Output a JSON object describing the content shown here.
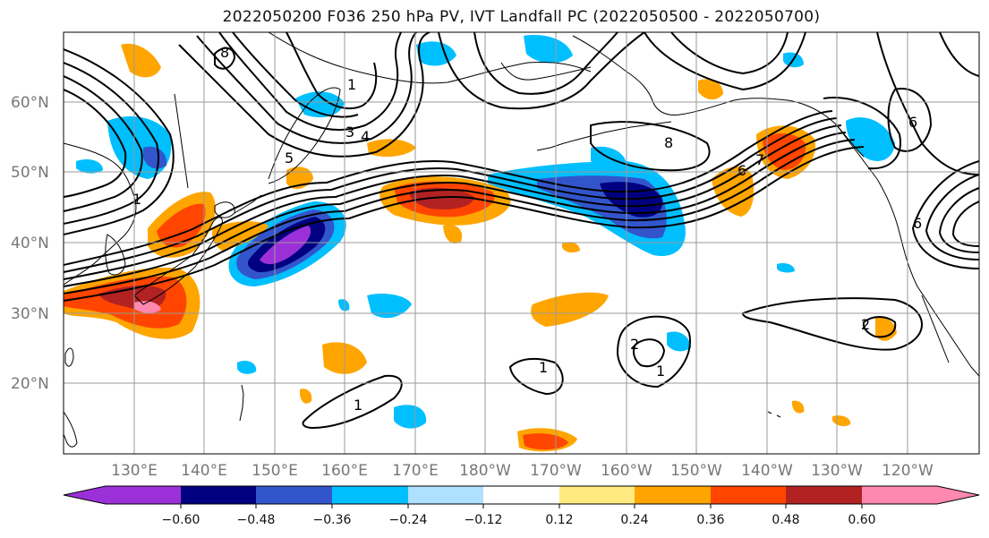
{
  "title": "2022050200 F036 250 hPa PV, IVT Landfall PC (2022050500 - 2022050700)",
  "lat_labels": [
    "60°N",
    "50°N",
    "40°N",
    "30°N",
    "20°N"
  ],
  "lon_labels": [
    "130°E",
    "140°E",
    "150°E",
    "160°E",
    "170°E",
    "180°W",
    "170°W",
    "160°W",
    "150°W",
    "140°W",
    "130°W",
    "120°W"
  ],
  "colorbar": {
    "ticks": [
      "−0.60",
      "−0.48",
      "−0.36",
      "−0.24",
      "−0.12",
      "0.12",
      "0.24",
      "0.36",
      "0.48",
      "0.60"
    ],
    "colors": [
      "#9b30d9",
      "#000080",
      "#3355cc",
      "#00bfff",
      "#b0e0ff",
      "#ffffff",
      "#ffeb80",
      "#ffa500",
      "#ff4500",
      "#b22222",
      "#ff88b0"
    ]
  },
  "contour_labels": [
    "8",
    "1",
    "3",
    "4",
    "5",
    "8",
    "6",
    "7",
    "6",
    "6",
    "2",
    "1",
    "1",
    "1",
    "1",
    "2"
  ],
  "colors": {
    "land_outline": "#000000",
    "grid": "#9a9a9a",
    "contour": "#000000"
  }
}
